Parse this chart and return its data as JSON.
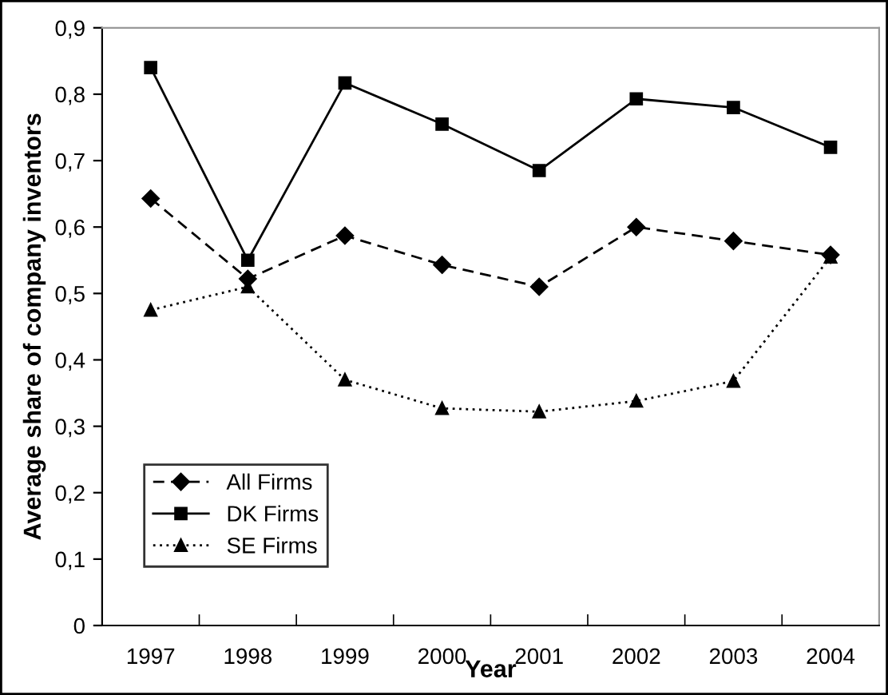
{
  "chart_data": {
    "type": "line",
    "xlabel": "Year",
    "ylabel": "Average share of company inventors",
    "categories": [
      "1997",
      "1998",
      "1999",
      "2000",
      "2001",
      "2002",
      "2003",
      "2004"
    ],
    "series": [
      {
        "name": "All Firms",
        "color": "#000000",
        "marker": "diamond",
        "line_style": "dashed",
        "values": [
          0.643,
          0.522,
          0.587,
          0.543,
          0.51,
          0.6,
          0.579,
          0.558
        ]
      },
      {
        "name": "DK Firms",
        "color": "#000000",
        "marker": "square",
        "line_style": "solid",
        "values": [
          0.84,
          0.55,
          0.817,
          0.755,
          0.685,
          0.793,
          0.78,
          0.72
        ]
      },
      {
        "name": "SE Firms",
        "color": "#000000",
        "marker": "triangle",
        "line_style": "dotted",
        "values": [
          0.475,
          0.51,
          0.37,
          0.327,
          0.322,
          0.338,
          0.368,
          0.555
        ]
      }
    ],
    "ylim": [
      0,
      0.9
    ],
    "yticks": [
      {
        "value": 0,
        "label": "0"
      },
      {
        "value": 0.1,
        "label": "0,1"
      },
      {
        "value": 0.2,
        "label": "0,2"
      },
      {
        "value": 0.3,
        "label": "0,3"
      },
      {
        "value": 0.4,
        "label": "0,4"
      },
      {
        "value": 0.5,
        "label": "0,5"
      },
      {
        "value": 0.6,
        "label": "0,6"
      },
      {
        "value": 0.7,
        "label": "0,7"
      },
      {
        "value": 0.8,
        "label": "0,8"
      },
      {
        "value": 0.9,
        "label": "0,9"
      }
    ],
    "grid": false,
    "legend": "bottom left"
  }
}
